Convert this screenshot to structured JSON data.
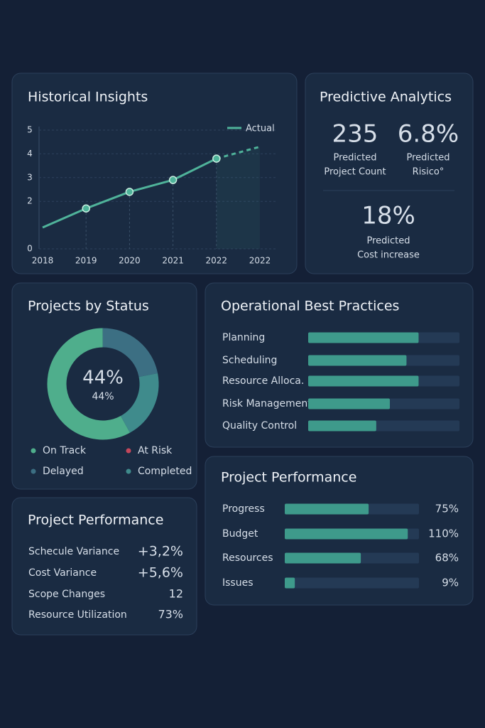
{
  "chart_data": [
    {
      "type": "line",
      "title": "Historical Insights",
      "categories": [
        "2018",
        "2019",
        "2020",
        "2021",
        "2022",
        "2022"
      ],
      "series": [
        {
          "name": "Actual",
          "color": "#4fb39a",
          "values": [
            0.9,
            1.7,
            2.4,
            2.9,
            3.8,
            4.3
          ]
        }
      ],
      "ylim": [
        0,
        5
      ],
      "yticks": [
        0,
        2,
        3,
        4,
        5
      ],
      "grid": true,
      "legend": "top-right",
      "dashed_from": 4
    },
    {
      "type": "donut",
      "title": "Projects by Status",
      "center_text": "44%",
      "center_subtext": "44%",
      "categories": [
        "On Track",
        "At Risk",
        "Delayed",
        "Completed"
      ],
      "values": [
        58,
        0,
        22,
        20
      ],
      "colors": [
        "#4fae8c",
        "#c4475b",
        "#3c6f83",
        "#3f8b8c"
      ]
    },
    {
      "type": "hbar",
      "title": "Operational Best Practices",
      "categories": [
        "Planning",
        "Scheduling",
        "Resource Alloca.",
        "Risk Management",
        "Quality Control"
      ],
      "values": [
        73,
        65,
        73,
        54,
        45
      ],
      "xlim": [
        0,
        100
      ],
      "color": "#3e9a8b",
      "track_color": "#243a55"
    },
    {
      "type": "hbar",
      "title": "Project Performance",
      "categories": [
        "Progress",
        "Budget",
        "Resources",
        "Issues"
      ],
      "values": [
        75,
        110,
        68,
        9
      ],
      "value_labels": [
        "75%",
        "110%",
        "68%",
        "9%"
      ],
      "xlim": [
        0,
        120
      ],
      "color": "#3e9a8b",
      "track_color": "#243a55"
    }
  ],
  "predictive": {
    "title": "Predictive Analytics",
    "kpis": [
      {
        "value": "235",
        "label": [
          "Predicted",
          "Project Count"
        ],
        "color": "#cfeedd"
      },
      {
        "value": "6.8%",
        "label": [
          "Predicted",
          "Risico°"
        ],
        "color": "#7fd6a0"
      },
      {
        "value": "18%",
        "label": [
          "Predicted",
          "Cost increase"
        ],
        "color": "#f08a7a"
      }
    ]
  },
  "performance_table": {
    "title": "Project Performance",
    "rows": [
      [
        "Schecule  Variance",
        "+3,2%"
      ],
      [
        "Cost Variance",
        "+5,6%"
      ],
      [
        "Scope Changes",
        "12"
      ],
      [
        "Resource Utilization",
        "73%"
      ]
    ],
    "value_colors": [
      "#72d394",
      "#e97878",
      "#e8eef5",
      "#e8eef5"
    ]
  }
}
